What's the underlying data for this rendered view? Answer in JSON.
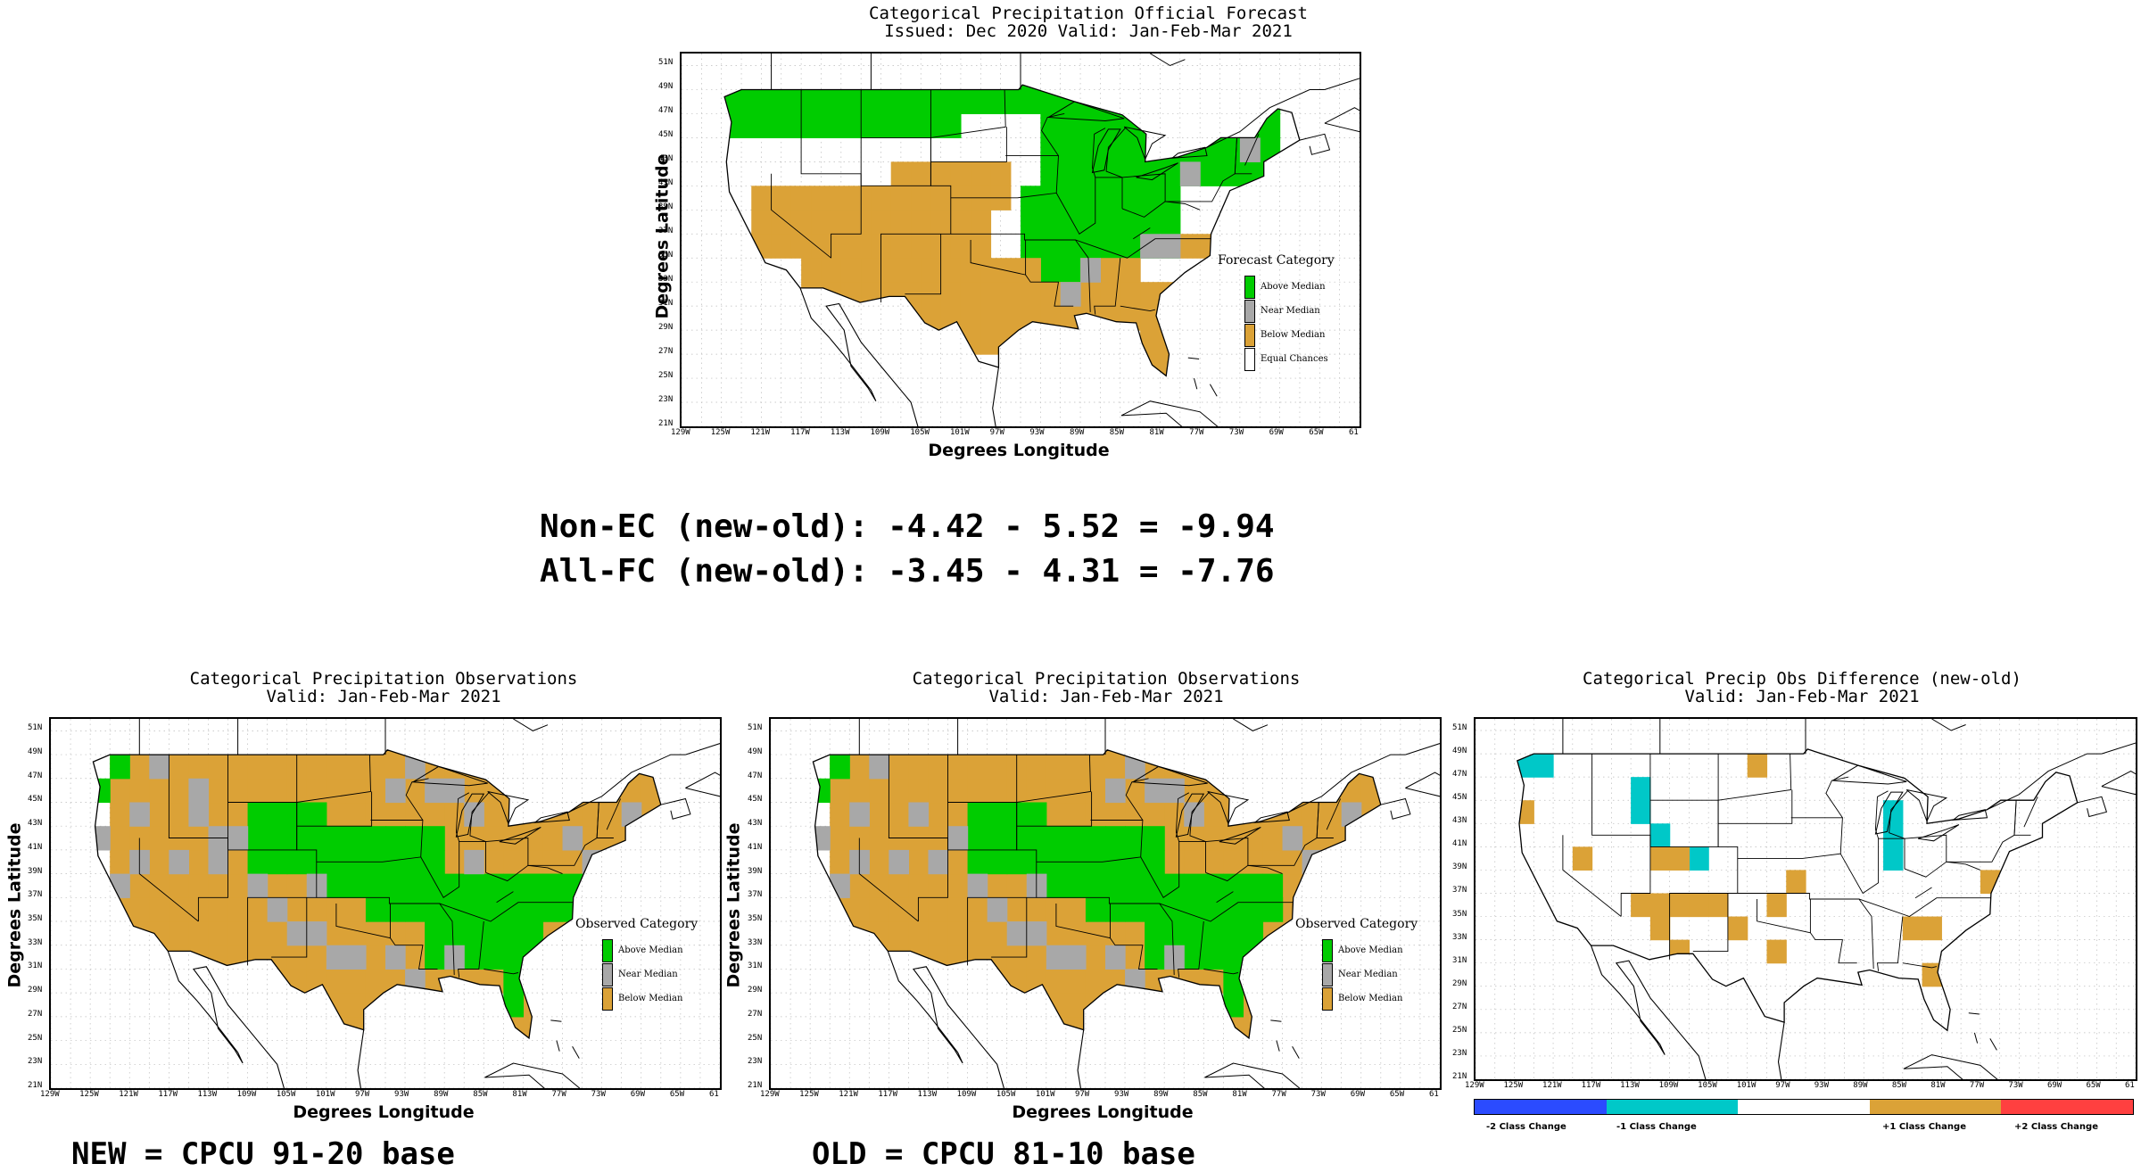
{
  "colors": {
    "above": "#00cc00",
    "near": "#a8a8a8",
    "below": "#dba237",
    "ec": "#ffffff",
    "minus2": "#2b4bff",
    "minus1": "#00c8c8",
    "plus1": "#dba237",
    "plus2": "#ff4040"
  },
  "lat_ticks": [
    "51N",
    "49N",
    "47N",
    "45N",
    "43N",
    "41N",
    "39N",
    "37N",
    "35N",
    "33N",
    "31N",
    "29N",
    "27N",
    "25N",
    "23N",
    "21N"
  ],
  "lon_ticks": [
    "129W",
    "125W",
    "121W",
    "117W",
    "113W",
    "109W",
    "105W",
    "101W",
    "97W",
    "93W",
    "89W",
    "85W",
    "81W",
    "77W",
    "73W",
    "69W",
    "65W",
    "61"
  ],
  "axis": {
    "ylabel": "Degrees Latitude",
    "xlabel": "Degrees Longitude"
  },
  "forecast": {
    "title1": "Categorical Precipitation Official Forecast",
    "title2": "Issued: Dec 2020 Valid: Jan-Feb-Mar 2021",
    "legend_title": "Forecast Category",
    "legend": [
      "Above Median",
      "Near Median",
      "Below Median",
      "Equal Chances"
    ]
  },
  "scores": {
    "line1": "Non-EC (new-old): -4.42 - 5.52 = -9.94",
    "line2": "All-FC (new-old): -3.45 - 4.31 = -7.76"
  },
  "obs_new": {
    "title1": "Categorical Precipitation Observations",
    "title2": "Valid: Jan-Feb-Mar 2021",
    "legend_title": "Observed Category",
    "legend": [
      "Above Median",
      "Near Median",
      "Below Median"
    ],
    "caption": "NEW = CPCU 91-20 base"
  },
  "obs_old": {
    "title1": "Categorical Precipitation Observations",
    "title2": "Valid: Jan-Feb-Mar 2021",
    "legend_title": "Observed Category",
    "legend": [
      "Above Median",
      "Near Median",
      "Below Median"
    ],
    "caption": "OLD = CPCU 81-10 base"
  },
  "diff": {
    "title1": "Categorical Precip Obs Difference (new-old)",
    "title2": "Valid: Jan-Feb-Mar 2021",
    "bar_labels": [
      "-2 Class Change",
      "-1 Class Change",
      "+1 Class Change",
      "+2 Class Change"
    ]
  }
}
